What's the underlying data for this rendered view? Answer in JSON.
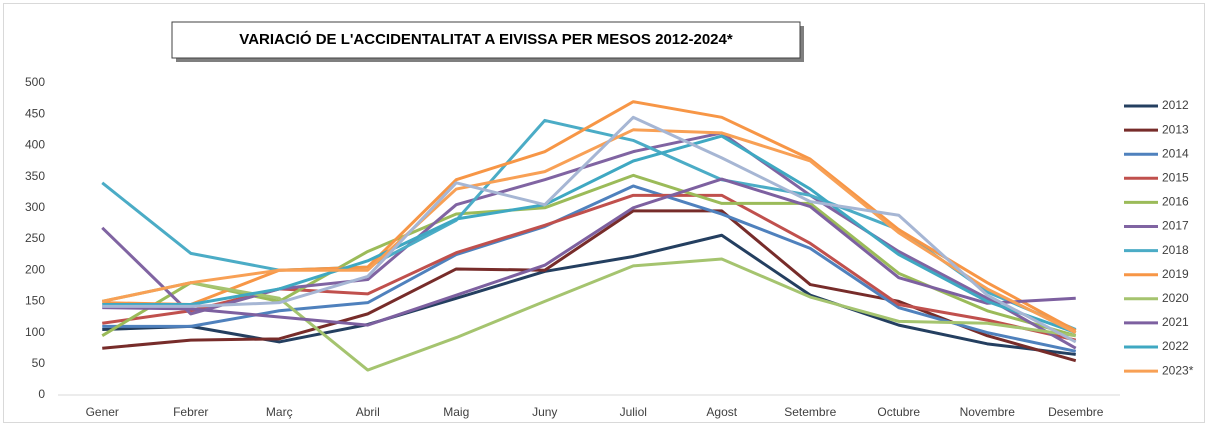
{
  "chart_data": {
    "type": "line",
    "title": "VARIACIÓ DE L'ACCIDENTALITAT A EIVISSA PER MESOS 2012-2024*",
    "categories": [
      "Gener",
      "Febrer",
      "Març",
      "Abril",
      "Maig",
      "Juny",
      "Juliol",
      "Agost",
      "Setembre",
      "Octubre",
      "Novembre",
      "Desembre"
    ],
    "ylim": [
      0,
      500
    ],
    "yticks": [
      0,
      50,
      100,
      150,
      200,
      250,
      300,
      350,
      400,
      450,
      500
    ],
    "grid": false,
    "legend": "right",
    "series": [
      {
        "name": "2012",
        "color": "#243f60",
        "values": [
          105,
          110,
          85,
          113,
          155,
          198,
          222,
          256,
          160,
          112,
          82,
          65
        ]
      },
      {
        "name": "2013",
        "color": "#772c2a",
        "values": [
          75,
          88,
          90,
          130,
          202,
          200,
          295,
          295,
          177,
          150,
          95,
          55
        ]
      },
      {
        "name": "2014",
        "color": "#4f81bd",
        "values": [
          110,
          110,
          135,
          148,
          225,
          270,
          335,
          290,
          235,
          140,
          100,
          70
        ]
      },
      {
        "name": "2015",
        "color": "#c0504d",
        "values": [
          115,
          135,
          170,
          162,
          228,
          272,
          320,
          320,
          243,
          145,
          120,
          88
        ]
      },
      {
        "name": "2016",
        "color": "#9bbb59",
        "values": [
          95,
          180,
          150,
          230,
          290,
          300,
          352,
          307,
          307,
          195,
          135,
          95
        ]
      },
      {
        "name": "2017",
        "color": "#8064a2",
        "values": [
          268,
          130,
          170,
          185,
          305,
          345,
          390,
          420,
          320,
          230,
          155,
          75
        ]
      },
      {
        "name": "2018",
        "color": "#4bacc6",
        "values": [
          340,
          227,
          200,
          205,
          280,
          440,
          408,
          345,
          320,
          265,
          165,
          105
        ]
      },
      {
        "name": "2019",
        "color": "#f79646",
        "values": [
          148,
          145,
          200,
          205,
          345,
          390,
          470,
          445,
          378,
          265,
          180,
          103
        ]
      },
      {
        "name": "2020",
        "color": "#a5c46f",
        "values": [
          150,
          180,
          155,
          40,
          92,
          150,
          207,
          218,
          157,
          118,
          115,
          95
        ]
      },
      {
        "name": "2021",
        "color": "#7d60a0",
        "values": [
          140,
          138,
          125,
          112,
          160,
          208,
          300,
          346,
          302,
          188,
          147,
          155
        ]
      },
      {
        "name": "2022",
        "color": "#3fa8c2",
        "values": [
          145,
          145,
          170,
          215,
          282,
          305,
          375,
          415,
          330,
          225,
          150,
          100
        ]
      },
      {
        "name": "2023*",
        "color": "#f8a055",
        "values": [
          150,
          180,
          200,
          200,
          330,
          358,
          425,
          420,
          375,
          260,
          170,
          100
        ]
      },
      {
        "color": "#a6b6d4",
        "values": [
          142,
          142,
          148,
          190,
          340,
          305,
          445,
          380,
          310,
          288,
          160,
          85
        ]
      }
    ]
  }
}
